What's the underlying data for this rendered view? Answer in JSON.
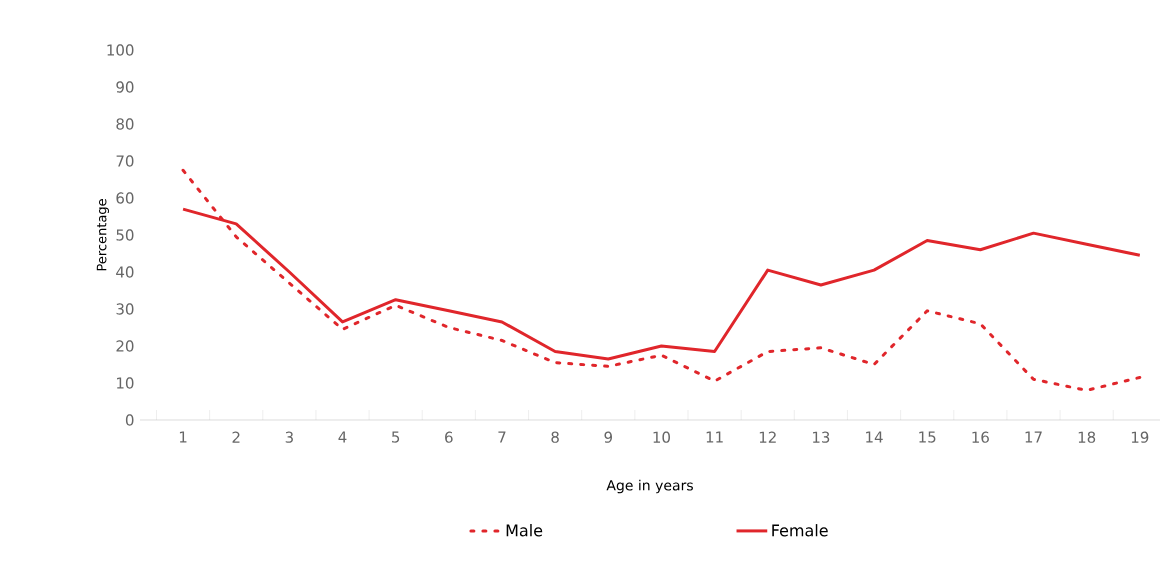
{
  "chart_data": {
    "type": "line",
    "xlabel": "Age in years",
    "ylabel": "Percentage",
    "categories": [
      "1",
      "2",
      "3",
      "4",
      "5",
      "6",
      "7",
      "8",
      "9",
      "10",
      "11",
      "12",
      "13",
      "14",
      "15",
      "16",
      "17",
      "18",
      "19"
    ],
    "series": [
      {
        "name": "Male",
        "color": "#e0262b",
        "line_style": "dotted",
        "values": [
          67.5,
          49.5,
          37,
          24.5,
          31,
          25,
          21.5,
          15.5,
          14.5,
          17.5,
          10.5,
          18.5,
          19.5,
          15,
          29.5,
          26,
          11,
          8,
          11.5
        ]
      },
      {
        "name": "Female",
        "color": "#e0262b",
        "line_style": "solid",
        "values": [
          57,
          53,
          40,
          26.5,
          32.5,
          29.5,
          26.5,
          18.5,
          16.5,
          20,
          18.5,
          40.5,
          36.5,
          40.5,
          48.5,
          46,
          50.5,
          47.5,
          44.5
        ]
      }
    ],
    "ylim": [
      0,
      100
    ],
    "yticks": [
      0,
      10,
      20,
      30,
      40,
      50,
      60,
      70,
      80,
      90,
      100
    ],
    "grid": false,
    "legend": "bottom",
    "marker": "none"
  }
}
